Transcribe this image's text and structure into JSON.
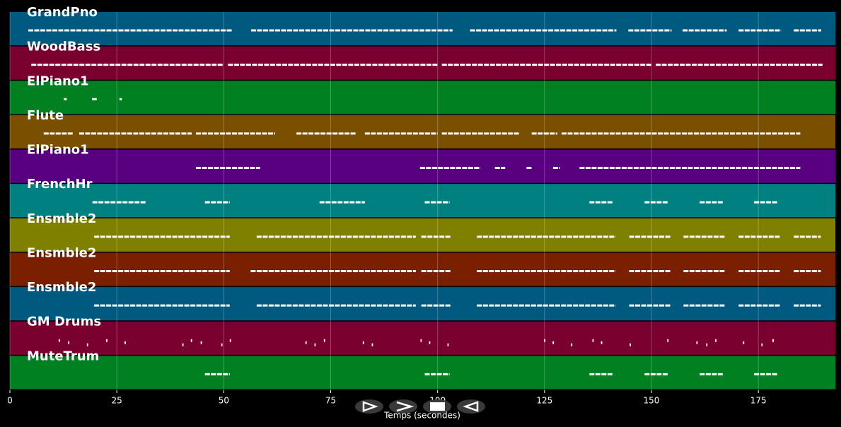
{
  "chart_data": {
    "type": "pianoroll",
    "xlabel": "Temps (secondes)",
    "xlim": [
      0,
      193
    ],
    "xticks": [
      0,
      25,
      50,
      75,
      100,
      125,
      150,
      175
    ],
    "grid": true,
    "series": [
      {
        "name": "GrandPno",
        "color": "#005a80",
        "notes": [
          [
            4.3,
            51.9
          ],
          [
            56.4,
            103.5
          ],
          [
            107.6,
            141.8
          ],
          [
            144.6,
            154.7
          ],
          [
            157.3,
            167.6
          ],
          [
            170.4,
            180.3
          ],
          [
            183.3,
            189.7
          ]
        ]
      },
      {
        "name": "WoodBass",
        "color": "#7a0030",
        "notes": [
          [
            5,
            50
          ],
          [
            51,
            100
          ],
          [
            101,
            150
          ],
          [
            151,
            190
          ]
        ]
      },
      {
        "name": "ElPiano1",
        "color": "#008020",
        "notes": [
          [
            12.6,
            13.3
          ],
          [
            19.2,
            20.3
          ],
          [
            25.6,
            26.2
          ]
        ]
      },
      {
        "name": "Flute",
        "color": "#7a5000",
        "notes": [
          [
            7.9,
            14.7
          ],
          [
            16.2,
            42.5
          ],
          [
            43.5,
            62
          ],
          [
            67,
            81
          ],
          [
            83,
            100
          ],
          [
            101,
            119
          ],
          [
            122,
            128
          ],
          [
            129,
            184.8
          ]
        ]
      },
      {
        "name": "ElPiano1",
        "color": "#580080",
        "notes": [
          [
            43.5,
            58.5
          ],
          [
            95.9,
            110
          ],
          [
            113.4,
            115.8
          ],
          [
            120.8,
            122
          ],
          [
            127,
            128.6
          ],
          [
            133.2,
            184.8
          ]
        ]
      },
      {
        "name": "FrenchHr",
        "color": "#008080",
        "notes": [
          [
            19.3,
            31.9
          ],
          [
            45.6,
            51.4
          ],
          [
            72.4,
            83
          ],
          [
            97,
            102.8
          ],
          [
            135.5,
            141.1
          ],
          [
            148.4,
            153.9
          ],
          [
            161.3,
            166.9
          ],
          [
            174,
            179.6
          ]
        ]
      },
      {
        "name": "Ensmble2",
        "color": "#808000",
        "notes": [
          [
            19.7,
            51.4
          ],
          [
            57.7,
            94.9
          ],
          [
            96.2,
            103
          ],
          [
            109.2,
            141.6
          ],
          [
            144.8,
            154.4
          ],
          [
            157.5,
            167.2
          ],
          [
            170.4,
            180.1
          ],
          [
            183.3,
            189.6
          ]
        ]
      },
      {
        "name": "Ensmble2",
        "color": "#7a2000",
        "notes": [
          [
            19.7,
            51.4
          ],
          [
            56.3,
            94.9
          ],
          [
            96.2,
            103
          ],
          [
            109.2,
            141.6
          ],
          [
            144.8,
            154.4
          ],
          [
            157.5,
            167.2
          ],
          [
            170.4,
            180.1
          ],
          [
            183.3,
            189.6
          ]
        ]
      },
      {
        "name": "Ensmble2",
        "color": "#005a80",
        "notes": [
          [
            19.7,
            51.4
          ],
          [
            57.7,
            94.9
          ],
          [
            96.2,
            103
          ],
          [
            109.2,
            141.6
          ],
          [
            144.8,
            154.4
          ],
          [
            157.5,
            167.2
          ],
          [
            170.4,
            180.1
          ],
          [
            183.3,
            189.6
          ]
        ]
      },
      {
        "name": "GM Drums",
        "color": "#7a0030",
        "notes": [
          [
            11.4,
            11.7
          ],
          [
            13.6,
            13.9
          ],
          [
            18,
            18.3
          ],
          [
            22.5,
            22.8
          ],
          [
            26.8,
            27.1
          ],
          [
            40.3,
            40.6
          ],
          [
            42.3,
            42.6
          ],
          [
            44.6,
            44.9
          ],
          [
            49.4,
            49.7
          ],
          [
            51.4,
            51.7
          ],
          [
            69.1,
            69.4
          ],
          [
            71.2,
            71.5
          ],
          [
            73.4,
            73.7
          ],
          [
            82.5,
            82.8
          ],
          [
            84.6,
            84.9
          ],
          [
            96,
            96.3
          ],
          [
            98,
            98.3
          ],
          [
            102.3,
            102.6
          ],
          [
            124.9,
            125.2
          ],
          [
            126.9,
            127.2
          ],
          [
            131.2,
            131.5
          ],
          [
            136.2,
            136.5
          ],
          [
            138.2,
            138.5
          ],
          [
            144.9,
            145.2
          ],
          [
            153.7,
            154
          ],
          [
            160.5,
            160.8
          ],
          [
            162.8,
            163.1
          ],
          [
            164.9,
            165.2
          ],
          [
            171.4,
            171.7
          ],
          [
            175.7,
            176
          ],
          [
            178.3,
            178.6
          ]
        ]
      },
      {
        "name": "MuteTrum",
        "color": "#008020",
        "notes": [
          [
            45.6,
            51.4
          ],
          [
            97,
            102.8
          ],
          [
            135.5,
            141.1
          ],
          [
            148.4,
            153.9
          ],
          [
            161.3,
            166.9
          ],
          [
            174,
            179.6
          ]
        ]
      }
    ]
  }
}
